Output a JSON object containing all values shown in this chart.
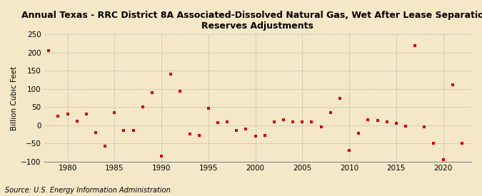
{
  "title_line1": "Annual Texas - RRC District 8A Associated-Dissolved Natural Gas, Wet After Lease Separation,",
  "title_line2": "Reserves Adjustments",
  "ylabel": "Billion Cubic Feet",
  "source": "Source: U.S. Energy Information Administration",
  "background_color": "#f5e8c8",
  "dot_color": "#cc0000",
  "years": [
    1978,
    1979,
    1980,
    1981,
    1982,
    1983,
    1984,
    1985,
    1986,
    1987,
    1988,
    1989,
    1990,
    1991,
    1992,
    1993,
    1994,
    1995,
    1996,
    1997,
    1998,
    1999,
    2000,
    2001,
    2002,
    2003,
    2004,
    2005,
    2006,
    2007,
    2008,
    2009,
    2010,
    2011,
    2012,
    2013,
    2014,
    2015,
    2016,
    2017,
    2018,
    2019,
    2020,
    2021,
    2022
  ],
  "values": [
    205,
    25,
    30,
    12,
    30,
    -20,
    -57,
    35,
    -15,
    -15,
    50,
    90,
    -85,
    140,
    93,
    -25,
    -28,
    46,
    8,
    10,
    -15,
    -10,
    -30,
    -28,
    10,
    15,
    10,
    10,
    10,
    -5,
    35,
    73,
    -70,
    -22,
    15,
    14,
    10,
    5,
    -3,
    220,
    -5,
    -50,
    -95,
    112,
    -50
  ],
  "xlim": [
    1977.5,
    2023
  ],
  "ylim": [
    -100,
    250
  ],
  "yticks": [
    -100,
    -50,
    0,
    50,
    100,
    150,
    200,
    250
  ],
  "xticks": [
    1980,
    1985,
    1990,
    1995,
    2000,
    2005,
    2010,
    2015,
    2020
  ],
  "grid_color": "#b0b0b0",
  "grid_linestyle": "--",
  "grid_linewidth": 0.5,
  "title_fontsize": 9,
  "label_fontsize": 7.5,
  "tick_fontsize": 7.5,
  "source_fontsize": 7
}
